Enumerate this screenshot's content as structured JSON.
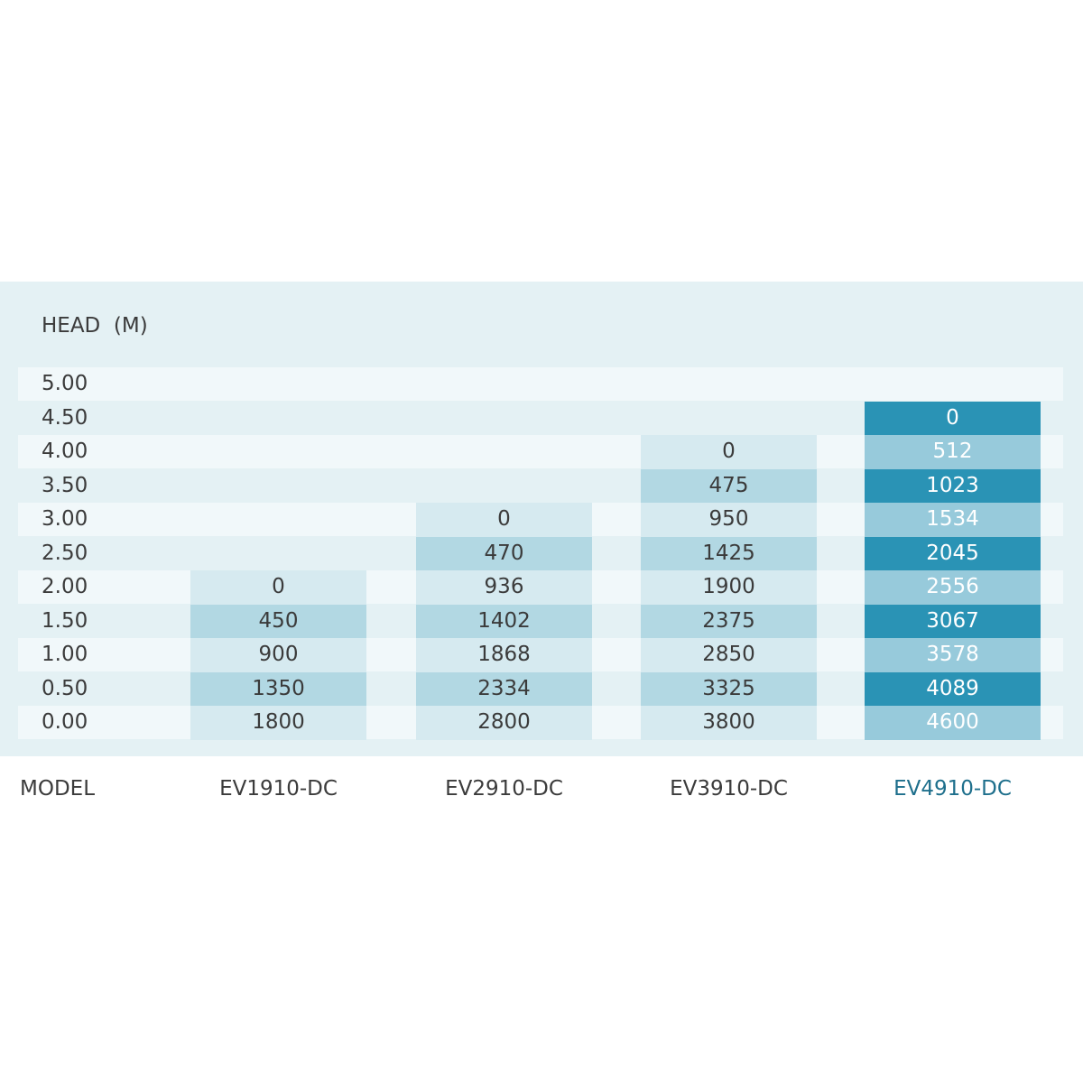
{
  "header": {
    "title": "HEAD  (M)"
  },
  "table": {
    "rows": [
      [
        "5.00",
        null,
        null,
        null,
        null
      ],
      [
        "4.50",
        null,
        null,
        null,
        0
      ],
      [
        "4.00",
        null,
        null,
        0,
        512
      ],
      [
        "3.50",
        null,
        null,
        475,
        1023
      ],
      [
        "3.00",
        null,
        0,
        950,
        1534
      ],
      [
        "2.50",
        null,
        470,
        1425,
        2045
      ],
      [
        "2.00",
        0,
        936,
        1900,
        2556
      ],
      [
        "1.50",
        450,
        1402,
        2375,
        3067
      ],
      [
        "1.00",
        900,
        1868,
        2850,
        3578
      ],
      [
        "0.50",
        1350,
        2334,
        3325,
        4089
      ],
      [
        "0.00",
        1800,
        2800,
        3800,
        4600
      ]
    ]
  },
  "footer": {
    "label": "MODEL",
    "models": [
      "EV1910-DC",
      "EV2910-DC",
      "EV3910-DC",
      "EV4910-DC"
    ]
  }
}
